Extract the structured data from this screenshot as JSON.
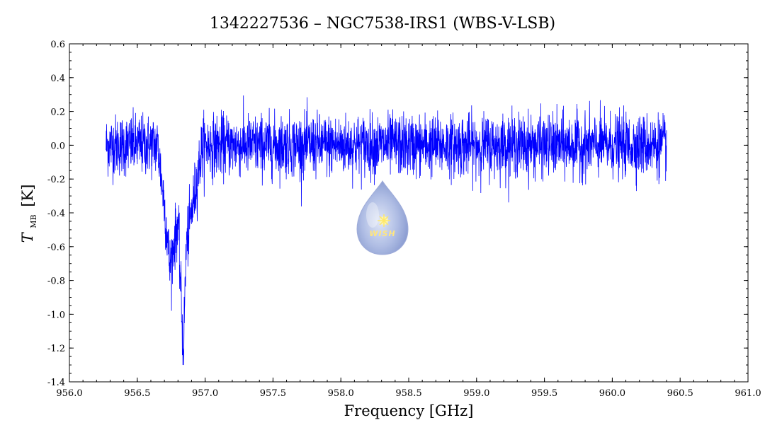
{
  "chart_data": {
    "type": "line",
    "title": "1342227536 – NGC7538-IRS1 (WBS-V-LSB)",
    "xlabel": "Frequency [GHz]",
    "ylabel_main": "T",
    "ylabel_sub": "MB",
    "ylabel_unit": "[K]",
    "xlim": [
      956.0,
      961.0
    ],
    "ylim": [
      -1.4,
      0.6
    ],
    "x_ticks": [
      "956.0",
      "956.5",
      "957.0",
      "957.5",
      "958.0",
      "958.5",
      "959.0",
      "959.5",
      "960.0",
      "960.5",
      "961.0"
    ],
    "y_ticks": [
      "0.6",
      "0.4",
      "0.2",
      "0.0",
      "-0.2",
      "-0.4",
      "-0.6",
      "-0.8",
      "-1.0",
      "-1.2",
      "-1.4"
    ],
    "series": [
      {
        "color": "#0000ff",
        "x_range": [
          956.27,
          960.4
        ],
        "noise_rms": 0.09,
        "features": [
          {
            "x": 956.7,
            "y": -0.35
          },
          {
            "x": 956.74,
            "y": -0.72
          },
          {
            "x": 956.8,
            "y": -0.45
          },
          {
            "x": 956.84,
            "y": -1.24
          },
          {
            "x": 956.86,
            "y": -0.6
          },
          {
            "x": 956.93,
            "y": -0.25
          }
        ]
      }
    ],
    "grid": false,
    "legend": "none"
  },
  "logo": {
    "text": "WISH"
  }
}
